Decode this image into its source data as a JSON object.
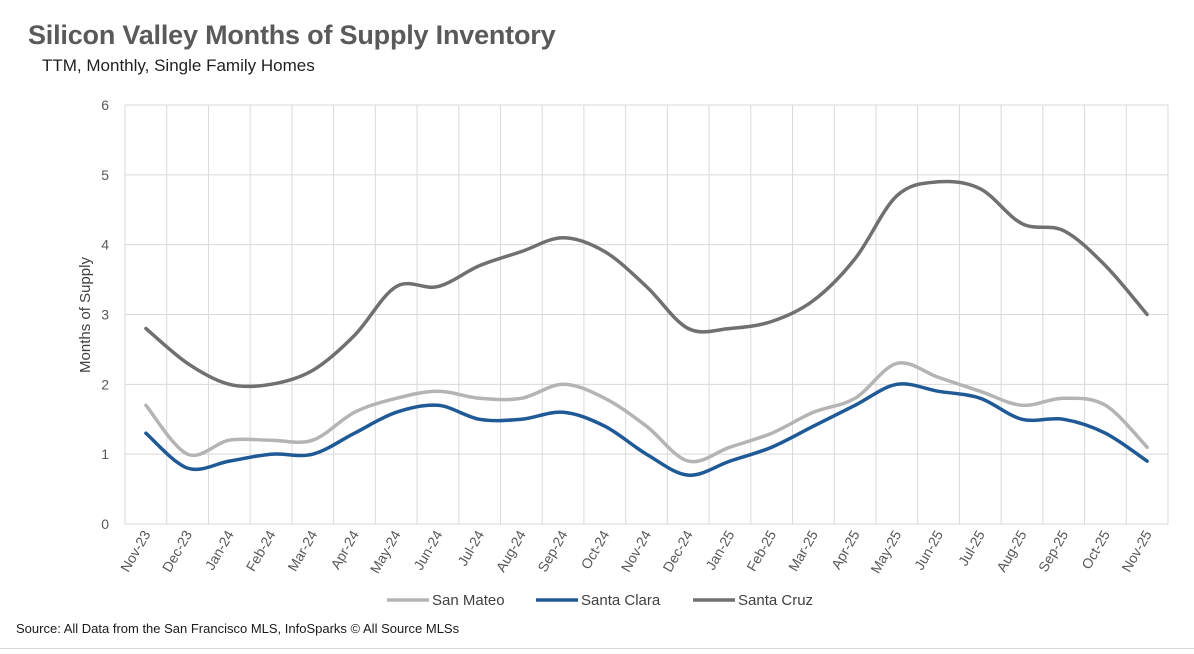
{
  "page": {
    "title": "Silicon Valley Months of Supply Inventory",
    "subtitle": "TTM, Monthly, Single Family Homes",
    "source": "Source: All Data from the San Francisco MLS, InfoSparks © All Source MLSs"
  },
  "colors": {
    "San Mateo": "#b4b4b4",
    "Santa Clara": "#1f5a96",
    "Santa Cruz": "#707070",
    "grid": "#d9d9d9"
  },
  "chart_data": {
    "type": "line",
    "title": "Silicon Valley Months of Supply Inventory",
    "subtitle": "TTM, Monthly, Single Family Homes",
    "xlabel": "",
    "ylabel": "Months of Supply",
    "ylim": [
      0,
      6
    ],
    "yticks": [
      0,
      1,
      2,
      3,
      4,
      5,
      6
    ],
    "grid": true,
    "legend": "bottom",
    "categories": [
      "Nov-23",
      "Dec-23",
      "Jan-24",
      "Feb-24",
      "Mar-24",
      "Apr-24",
      "May-24",
      "Jun-24",
      "Jul-24",
      "Aug-24",
      "Sep-24",
      "Oct-24",
      "Nov-24",
      "Dec-24",
      "Jan-25",
      "Feb-25",
      "Mar-25",
      "Apr-25",
      "May-25",
      "Jun-25",
      "Jul-25",
      "Aug-25",
      "Sep-25",
      "Oct-25",
      "Nov-25"
    ],
    "series": [
      {
        "name": "San Mateo",
        "values": [
          1.7,
          1.0,
          1.2,
          1.2,
          1.2,
          1.6,
          1.8,
          1.9,
          1.8,
          1.8,
          2.0,
          1.8,
          1.4,
          0.9,
          1.1,
          1.3,
          1.6,
          1.8,
          2.3,
          2.1,
          1.9,
          1.7,
          1.8,
          1.7,
          1.1
        ]
      },
      {
        "name": "Santa Clara",
        "values": [
          1.3,
          0.8,
          0.9,
          1.0,
          1.0,
          1.3,
          1.6,
          1.7,
          1.5,
          1.5,
          1.6,
          1.4,
          1.0,
          0.7,
          0.9,
          1.1,
          1.4,
          1.7,
          2.0,
          1.9,
          1.8,
          1.5,
          1.5,
          1.3,
          0.9
        ]
      },
      {
        "name": "Santa Cruz",
        "values": [
          2.8,
          2.3,
          2.0,
          2.0,
          2.2,
          2.7,
          3.4,
          3.4,
          3.7,
          3.9,
          4.1,
          3.9,
          3.4,
          2.8,
          2.8,
          2.9,
          3.2,
          3.8,
          4.7,
          4.9,
          4.8,
          4.3,
          4.2,
          3.7,
          3.0
        ]
      }
    ]
  }
}
